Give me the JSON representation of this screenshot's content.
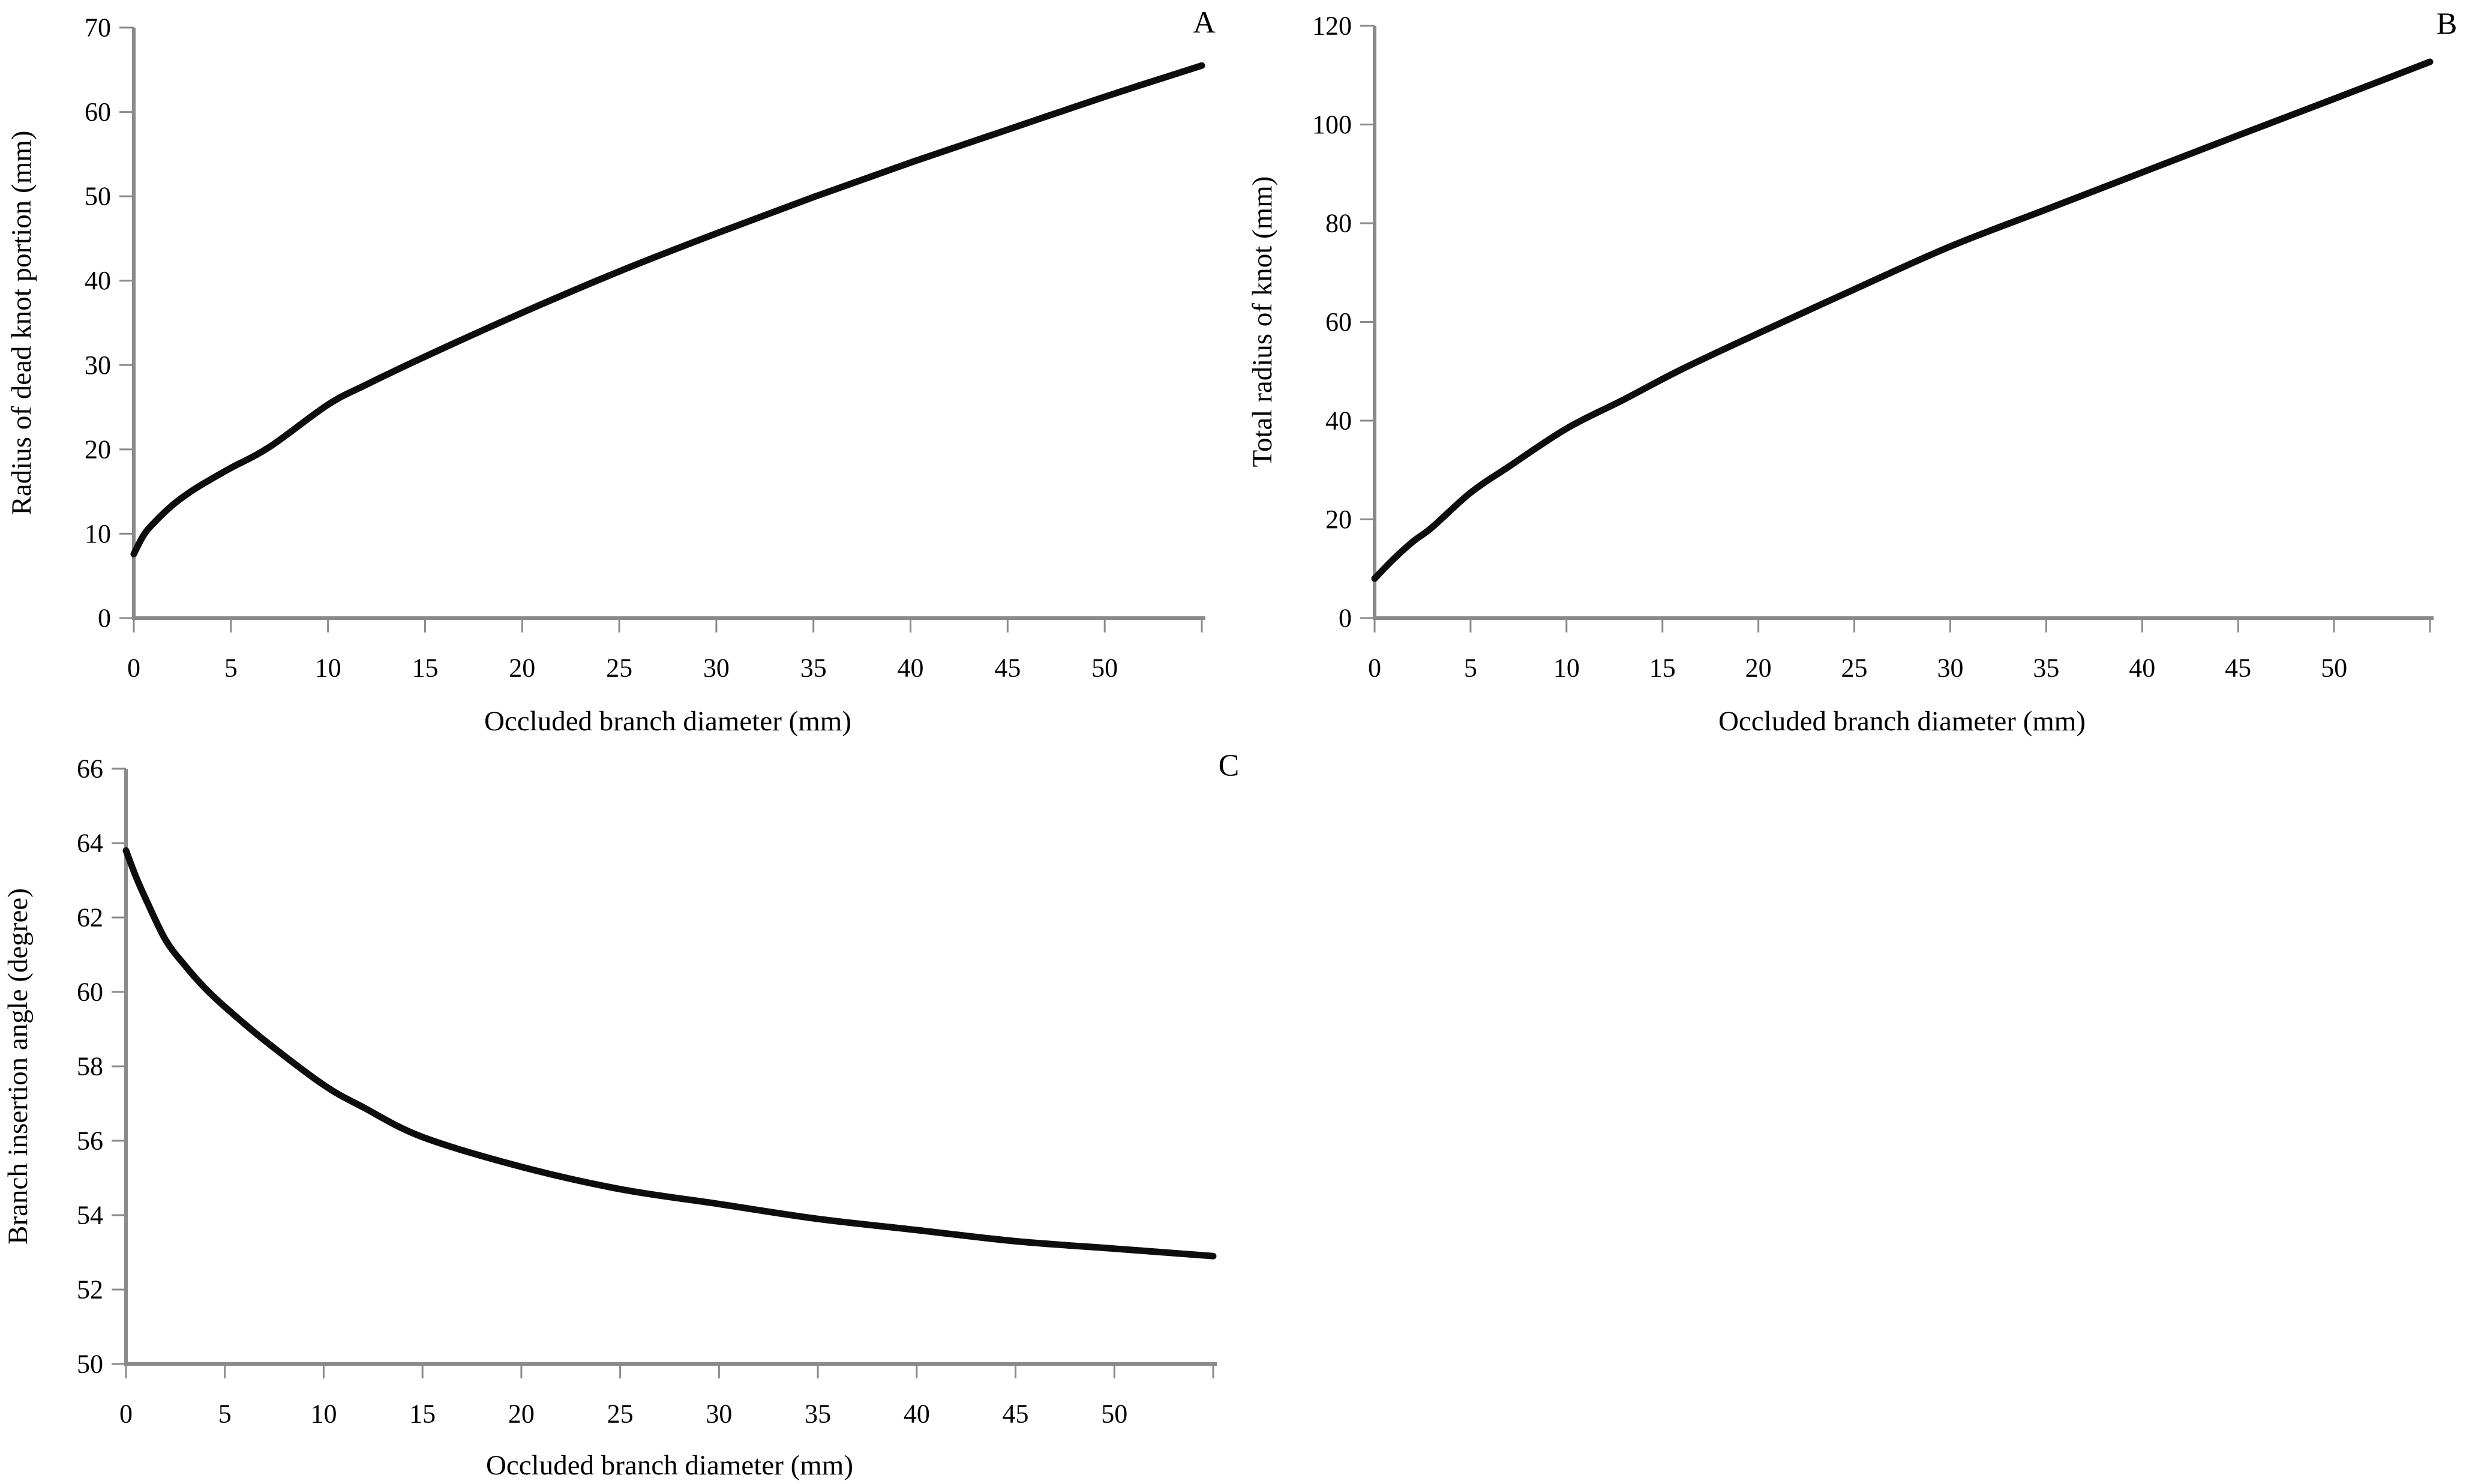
{
  "figure": {
    "background": "#ffffff",
    "axis_color": "#8a8a8a",
    "curve_color": "#0d0d0d",
    "text_color": "#000000"
  },
  "chart_data": [
    {
      "type": "line",
      "panel": "A",
      "title": "",
      "xlabel": "Occluded branch diameter (mm)",
      "ylabel": "Radius of dead knot portion (mm)",
      "xlim": [
        0,
        55
      ],
      "ylim": [
        0,
        70
      ],
      "xticks": [
        0,
        5,
        10,
        15,
        20,
        25,
        30,
        35,
        40,
        45,
        50
      ],
      "yticks": [
        0,
        10,
        20,
        30,
        40,
        50,
        60,
        70
      ],
      "grid": false,
      "legend": "none",
      "series": [
        {
          "name": "Radius of dead knot portion",
          "x": [
            0,
            0.5,
            1,
            2,
            3,
            4,
            5,
            7,
            10,
            12,
            15,
            20,
            25,
            30,
            35,
            40,
            45,
            50,
            55
          ],
          "y": [
            7.6,
            9.8,
            11.2,
            13.4,
            15.1,
            16.5,
            17.8,
            20.3,
            25.3,
            27.7,
            31.0,
            36.2,
            41.1,
            45.6,
            49.9,
            54.0,
            57.9,
            61.8,
            65.5
          ]
        }
      ]
    },
    {
      "type": "line",
      "panel": "B",
      "title": "",
      "xlabel": "Occluded branch diameter (mm)",
      "ylabel": "Total radius of knot (mm)",
      "xlim": [
        0,
        55
      ],
      "ylim": [
        0,
        120
      ],
      "xticks": [
        0,
        5,
        10,
        15,
        20,
        25,
        30,
        35,
        40,
        45,
        50
      ],
      "yticks": [
        0,
        20,
        40,
        60,
        80,
        100,
        120
      ],
      "grid": false,
      "legend": "none",
      "series": [
        {
          "name": "Total radius of knot",
          "x": [
            0,
            1,
            2,
            3,
            5,
            7,
            10,
            13,
            16,
            20,
            25,
            30,
            35,
            40,
            45,
            50,
            55
          ],
          "y": [
            8.0,
            12.0,
            15.5,
            18.4,
            25.4,
            30.7,
            38.4,
            44.3,
            50.4,
            57.7,
            66.6,
            75.3,
            82.8,
            90.3,
            97.8,
            105.2,
            112.7
          ]
        }
      ]
    },
    {
      "type": "line",
      "panel": "C",
      "title": "",
      "xlabel": "Occluded branch diameter (mm)",
      "ylabel": "Branch insertion angle (degree)",
      "xlim": [
        0,
        55
      ],
      "ylim": [
        50,
        66
      ],
      "xticks": [
        0,
        5,
        10,
        15,
        20,
        25,
        30,
        35,
        40,
        45,
        50
      ],
      "yticks": [
        50,
        52,
        54,
        56,
        58,
        60,
        62,
        64,
        66
      ],
      "grid": false,
      "legend": "none",
      "series": [
        {
          "name": "Branch insertion angle",
          "x": [
            0,
            0.5,
            1,
            2,
            3,
            4,
            5,
            7,
            10,
            12,
            15,
            20,
            25,
            30,
            35,
            40,
            45,
            50,
            55
          ],
          "y": [
            63.8,
            63.1,
            62.5,
            61.4,
            60.7,
            60.1,
            59.6,
            58.7,
            57.5,
            56.9,
            56.1,
            55.3,
            54.7,
            54.3,
            53.9,
            53.6,
            53.3,
            53.1,
            52.9
          ]
        }
      ]
    }
  ]
}
